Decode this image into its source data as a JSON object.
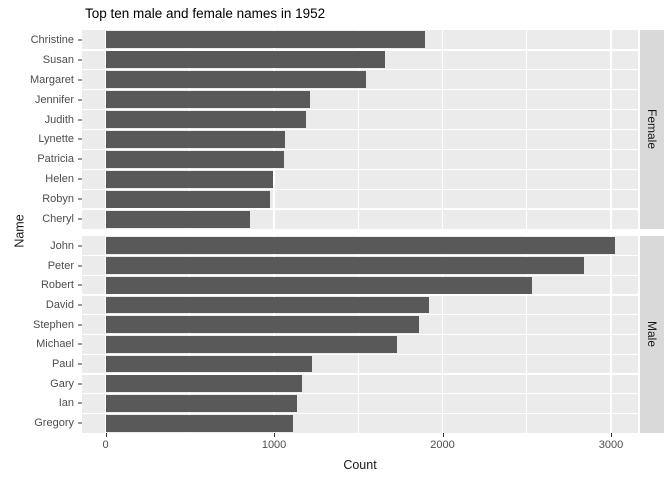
{
  "title": "Top ten male and female names in 1952",
  "axes": {
    "x_label": "Count",
    "y_label": "Name"
  },
  "chart_data": {
    "type": "bar",
    "orientation": "horizontal",
    "title": "Top ten male and female names in 1952",
    "xlabel": "Count",
    "ylabel": "Name",
    "x_ticks": [
      0,
      1000,
      2000,
      3000
    ],
    "x_minor_ticks": [
      500,
      1500,
      2500
    ],
    "xlim": [
      -140,
      3160
    ],
    "grid": true,
    "legend": "none",
    "facet_strip_position": "right",
    "facets": [
      {
        "label": "Female",
        "categories": [
          "Christine",
          "Susan",
          "Margaret",
          "Jennifer",
          "Judith",
          "Lynette",
          "Patricia",
          "Helen",
          "Robyn",
          "Cheryl"
        ],
        "values": [
          1895,
          1660,
          1545,
          1215,
          1190,
          1065,
          1060,
          995,
          975,
          855
        ]
      },
      {
        "label": "Male",
        "categories": [
          "John",
          "Peter",
          "Robert",
          "David",
          "Stephen",
          "Michael",
          "Paul",
          "Gary",
          "Ian",
          "Gregory"
        ],
        "values": [
          3025,
          2840,
          2530,
          1920,
          1860,
          1730,
          1225,
          1165,
          1135,
          1110
        ]
      }
    ],
    "colors": {
      "bar": "#595959",
      "panel_background": "#EBEBEB",
      "strip_background": "#D9D9D9",
      "gridline": "#FFFFFF",
      "axis_text": "#4D4D4D",
      "tick_mark": "#333333",
      "title_text": "#000000",
      "strip_text": "#1A1A1A"
    }
  }
}
